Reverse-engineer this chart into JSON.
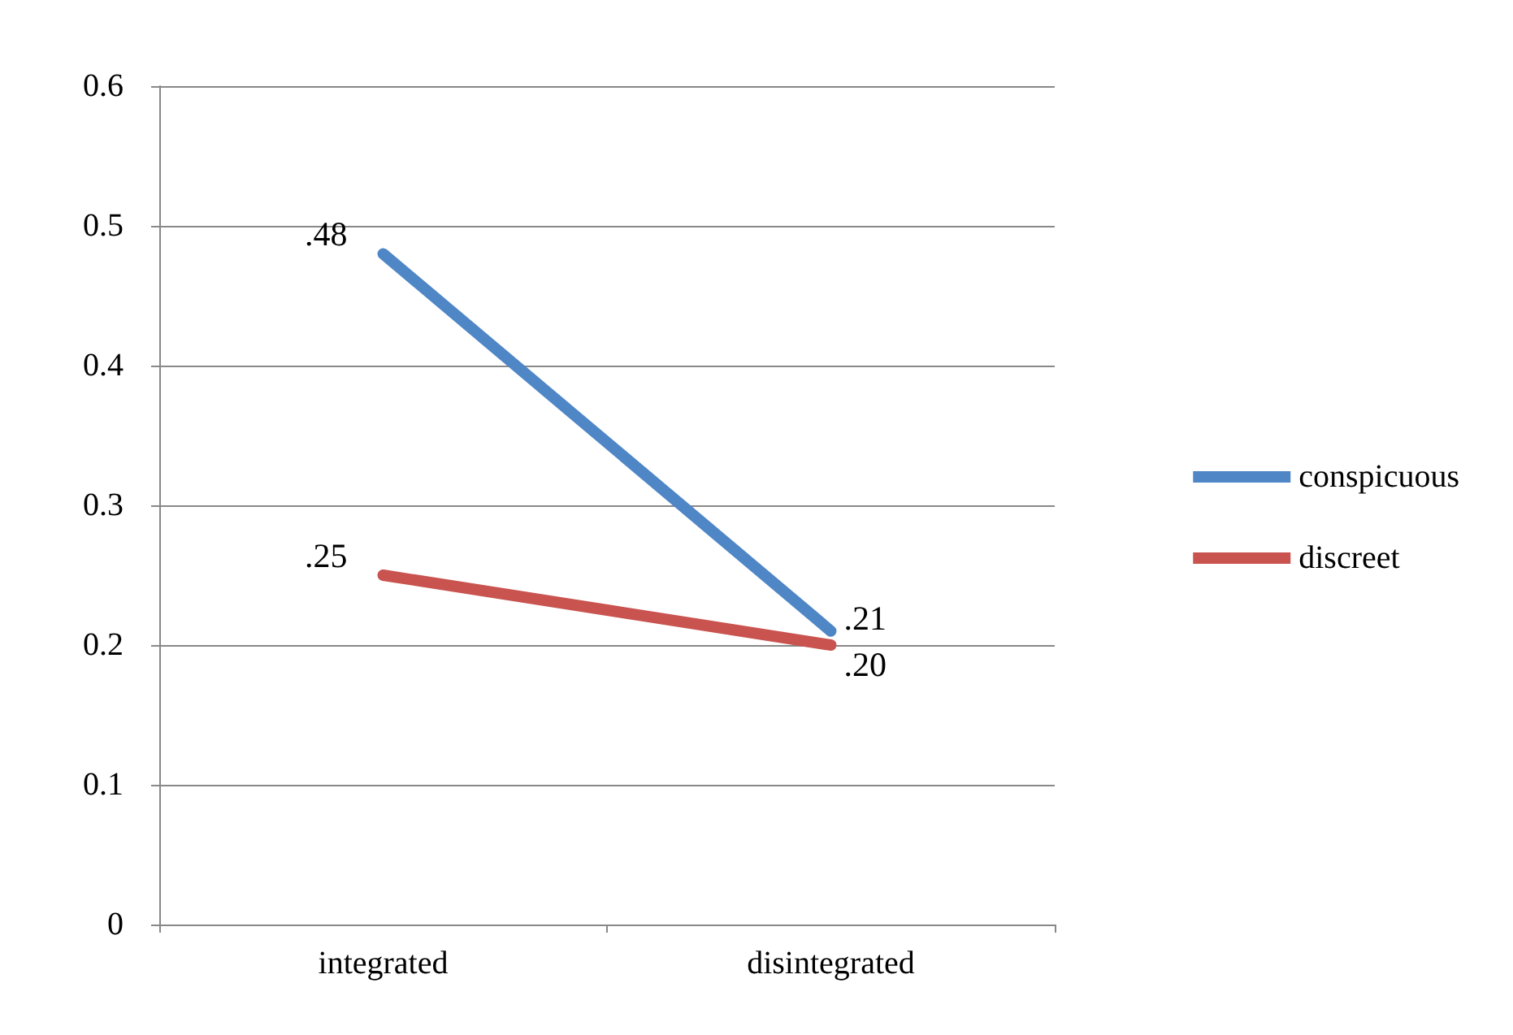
{
  "chart_data": {
    "type": "line",
    "categories": [
      "integrated",
      "disintegrated"
    ],
    "series": [
      {
        "name": "conspicuous",
        "color": "#4f86c6",
        "values": [
          0.48,
          0.21
        ],
        "value_labels": [
          ".48",
          ".21"
        ]
      },
      {
        "name": "discreet",
        "color": "#c9534f",
        "values": [
          0.25,
          0.2
        ],
        "value_labels": [
          ".25",
          ".20"
        ]
      }
    ],
    "ylim": [
      0,
      0.6
    ],
    "yticks": [
      0,
      0.1,
      0.2,
      0.3,
      0.4,
      0.5,
      0.6
    ],
    "grid": "y",
    "legend": "right",
    "marker": "none",
    "line_style": "solid"
  }
}
